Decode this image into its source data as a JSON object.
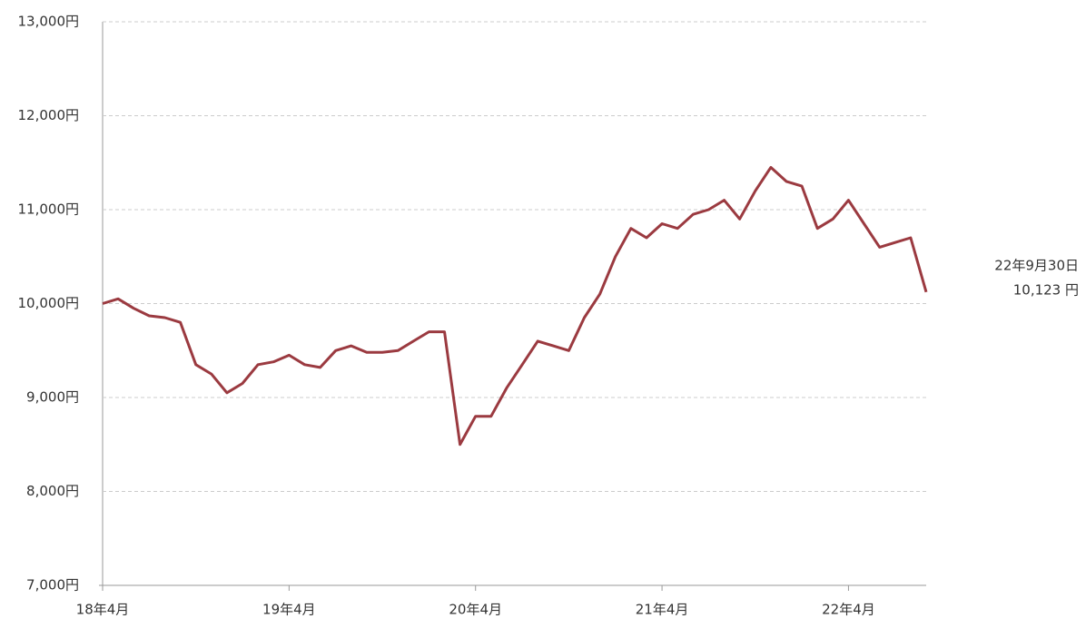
{
  "chart_data": {
    "type": "line",
    "categories": [
      "18年4月",
      null,
      null,
      null,
      null,
      null,
      null,
      null,
      null,
      null,
      null,
      null,
      "19年4月",
      null,
      null,
      null,
      null,
      null,
      null,
      null,
      null,
      null,
      null,
      null,
      "20年4月",
      null,
      null,
      null,
      null,
      null,
      null,
      null,
      null,
      null,
      null,
      null,
      "21年4月",
      null,
      null,
      null,
      null,
      null,
      null,
      null,
      null,
      null,
      null,
      null,
      "22年4月",
      null,
      null,
      null,
      null,
      null
    ],
    "values": [
      10000,
      10050,
      9950,
      9870,
      9850,
      9800,
      9350,
      9250,
      9050,
      9150,
      9350,
      9380,
      9450,
      9350,
      9320,
      9500,
      9550,
      9480,
      9480,
      9500,
      9600,
      9700,
      9700,
      8500,
      8800,
      8800,
      9100,
      9350,
      9600,
      9550,
      9500,
      9850,
      10100,
      10500,
      10800,
      10700,
      10850,
      10800,
      10950,
      11000,
      11100,
      10900,
      11200,
      11450,
      11300,
      11250,
      10800,
      10900,
      11100,
      10850,
      10600,
      10650,
      10700,
      10123
    ],
    "value_labels": [
      null,
      null,
      null,
      null,
      null,
      null,
      null,
      null,
      null,
      null,
      null,
      null,
      null,
      null,
      null,
      null,
      null,
      null,
      null,
      null,
      null,
      null,
      null,
      null,
      null,
      null,
      null,
      null,
      null,
      null,
      null,
      null,
      null,
      null,
      null,
      null,
      null,
      null,
      null,
      null,
      null,
      null,
      null,
      null,
      null,
      null,
      null,
      null,
      null,
      null,
      null,
      null,
      null,
      "10,123 円"
    ],
    "end_date": "22年9月30日",
    "color": "#9b3a40",
    "ylim": [
      7000,
      13000
    ],
    "yticks": [
      {
        "value": 7000,
        "label": "7,000円"
      },
      {
        "value": 8000,
        "label": "8,000円"
      },
      {
        "value": 9000,
        "label": "9,000円"
      },
      {
        "value": 10000,
        "label": "10,000円"
      },
      {
        "value": 11000,
        "label": "11,000円"
      },
      {
        "value": 12000,
        "label": "12,000円"
      },
      {
        "value": 13000,
        "label": "13,000円"
      }
    ],
    "grid": true
  }
}
